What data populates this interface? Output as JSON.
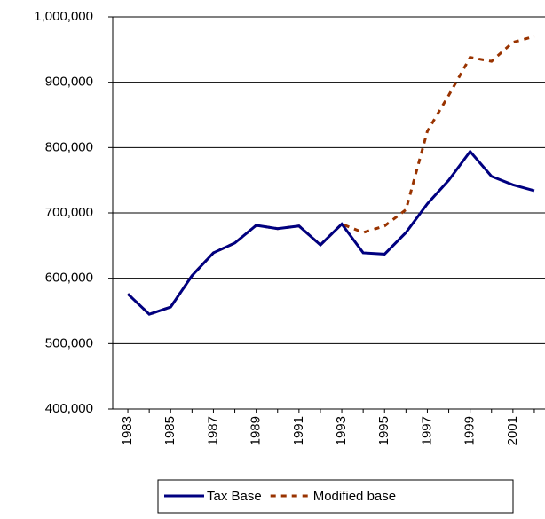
{
  "chart_data": {
    "type": "line",
    "categories": [
      "1983",
      null,
      "1985",
      null,
      "1987",
      null,
      "1989",
      null,
      "1991",
      null,
      "1993",
      null,
      "1995",
      null,
      "1997",
      null,
      "1999",
      null,
      "2001",
      null
    ],
    "series": [
      {
        "name": "Tax Base",
        "color": "#000080",
        "dash": false,
        "values": [
          576000,
          545000,
          556000,
          604000,
          639000,
          654000,
          681000,
          676000,
          680000,
          651000,
          683000,
          639000,
          637000,
          670000,
          714000,
          750000,
          794000,
          756000,
          743000,
          734000
        ]
      },
      {
        "name": "Modified base",
        "color": "#993300",
        "dash": true,
        "values": [
          576000,
          545000,
          556000,
          604000,
          639000,
          654000,
          681000,
          676000,
          680000,
          651000,
          683000,
          670000,
          680000,
          705000,
          825000,
          880000,
          938000,
          932000,
          961000,
          970000
        ]
      }
    ],
    "ylim": [
      400000,
      1000000
    ],
    "yticks": [
      {
        "value": 400000,
        "label": "400,000"
      },
      {
        "value": 500000,
        "label": "500,000"
      },
      {
        "value": 600000,
        "label": "600,000"
      },
      {
        "value": 700000,
        "label": "700,000"
      },
      {
        "value": 800000,
        "label": "800,000"
      },
      {
        "value": 900000,
        "label": "900,000"
      },
      {
        "value": 1000000,
        "label": "1,000,000"
      }
    ],
    "grid": true,
    "legend": "bottom"
  }
}
